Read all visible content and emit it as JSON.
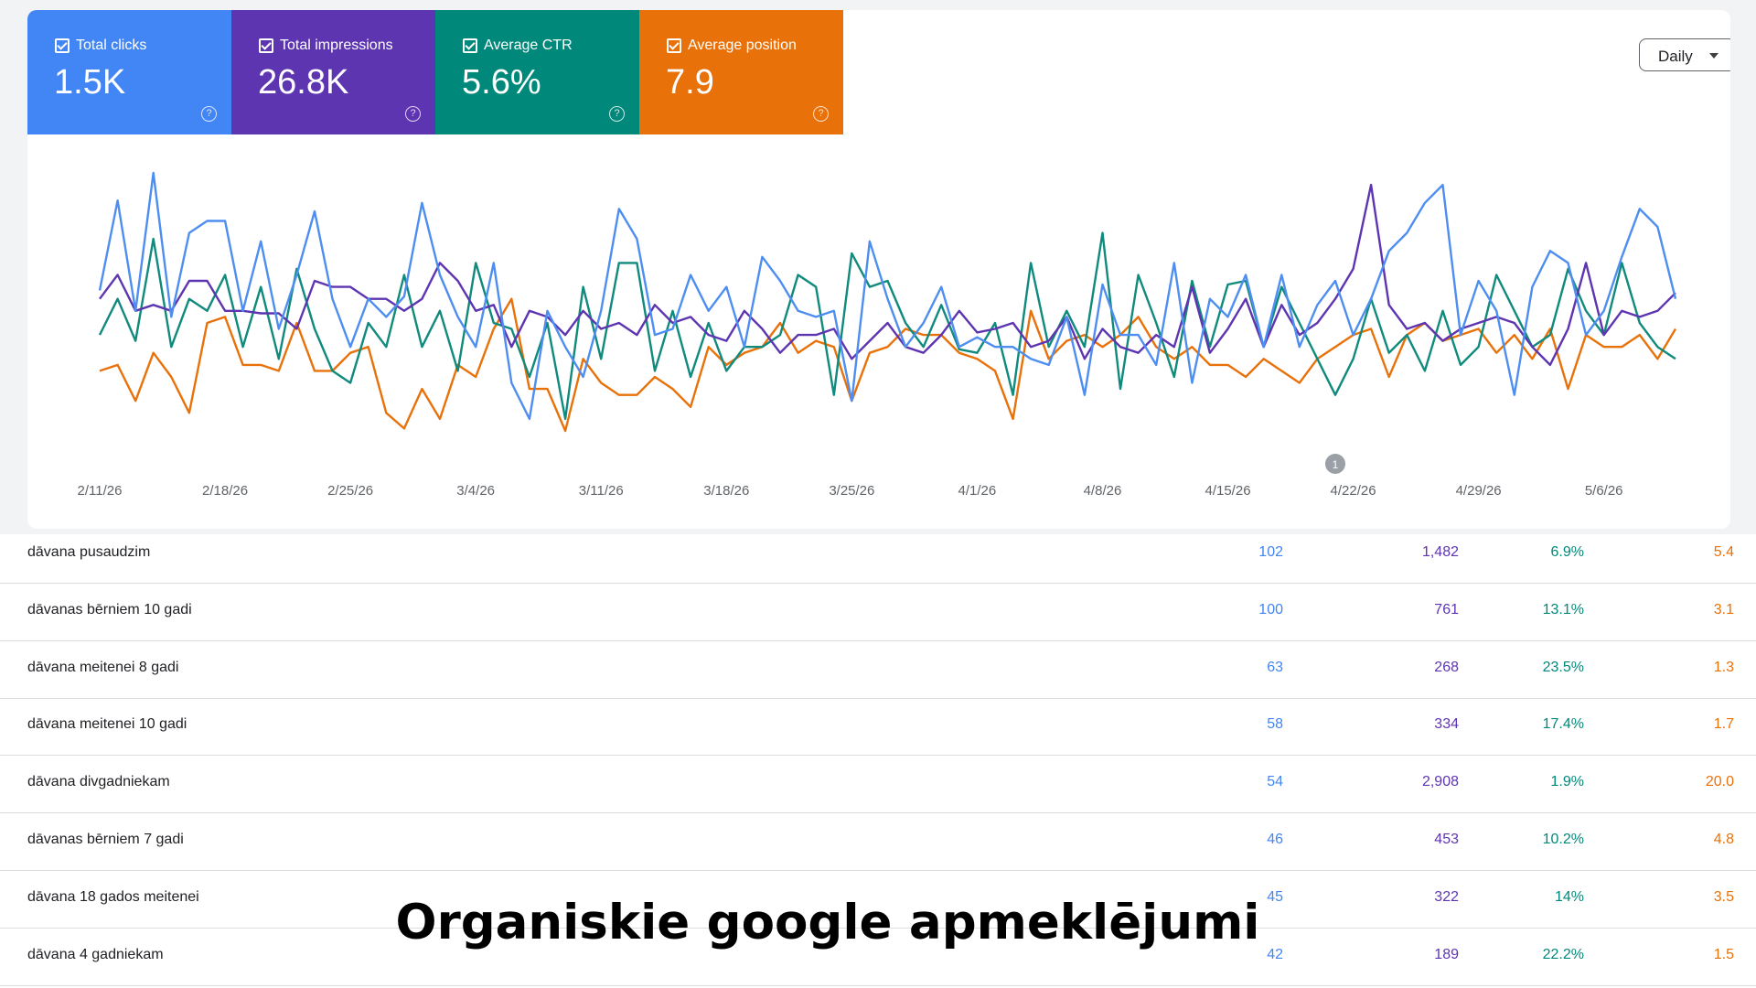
{
  "chart_data": {
    "type": "line",
    "categories": [
      "2/11/26",
      null,
      null,
      null,
      null,
      null,
      null,
      "2/18/26",
      null,
      null,
      null,
      null,
      null,
      null,
      "2/25/26",
      null,
      null,
      null,
      null,
      null,
      null,
      "3/4/26",
      null,
      null,
      null,
      null,
      null,
      null,
      "3/11/26",
      null,
      null,
      null,
      null,
      null,
      null,
      "3/18/26",
      null,
      null,
      null,
      null,
      null,
      null,
      "3/25/26",
      null,
      null,
      null,
      null,
      null,
      null,
      "4/1/26",
      null,
      null,
      null,
      null,
      null,
      null,
      "4/8/26",
      null,
      null,
      null,
      null,
      null,
      null,
      "4/15/26",
      null,
      null,
      null,
      null,
      null,
      null,
      "4/22/26",
      null,
      null,
      null,
      null,
      null,
      null,
      "4/29/26",
      null,
      null,
      null,
      null,
      null,
      null,
      "5/6/26",
      null,
      null,
      null,
      null
    ],
    "annotation": "1",
    "series": [
      {
        "name": "Total clicks",
        "total": "1.5K",
        "color": "#4285f4",
        "line_color": "#4e8ef0",
        "values": [
          147,
          222,
          130,
          245,
          125,
          195,
          205,
          205,
          130,
          188,
          115,
          160,
          213,
          140,
          100,
          140,
          125,
          142,
          220,
          160,
          125,
          100,
          170,
          70,
          40,
          130,
          100,
          75,
          130,
          215,
          190,
          110,
          115,
          160,
          130,
          150,
          100,
          175,
          155,
          130,
          125,
          130,
          55,
          188,
          140,
          100,
          120,
          150,
          100,
          108,
          100,
          100,
          90,
          85,
          125,
          60,
          152,
          110,
          110,
          85,
          170,
          70,
          140,
          125,
          160,
          100,
          160,
          100,
          135,
          155,
          110,
          140,
          180,
          195,
          220,
          235,
          110,
          155,
          130,
          60,
          150,
          180,
          170,
          110,
          130,
          175,
          215,
          200,
          140
        ]
      },
      {
        "name": "Total impressions",
        "total": "26.8K",
        "color": "#5e35b1",
        "line_color": "#5e35b1",
        "values": [
          140,
          160,
          130,
          135,
          130,
          155,
          155,
          130,
          130,
          128,
          128,
          115,
          155,
          150,
          150,
          140,
          140,
          130,
          140,
          170,
          155,
          130,
          135,
          100,
          130,
          125,
          110,
          130,
          115,
          120,
          110,
          135,
          120,
          125,
          110,
          105,
          130,
          115,
          95,
          110,
          110,
          115,
          90,
          105,
          120,
          100,
          95,
          110,
          130,
          112,
          115,
          120,
          100,
          105,
          125,
          90,
          115,
          100,
          95,
          110,
          100,
          150,
          95,
          115,
          140,
          100,
          135,
          110,
          120,
          140,
          165,
          235,
          135,
          115,
          120,
          105,
          115,
          120,
          125,
          120,
          100,
          85,
          115,
          170,
          110,
          130,
          125,
          130,
          145
        ]
      },
      {
        "name": "Average CTR",
        "total": "5.6%",
        "color": "#00897b",
        "line_color": "#108a7c",
        "values": [
          110,
          140,
          105,
          190,
          100,
          140,
          130,
          160,
          100,
          150,
          90,
          165,
          115,
          80,
          70,
          120,
          100,
          160,
          100,
          130,
          80,
          170,
          120,
          115,
          75,
          120,
          40,
          150,
          90,
          170,
          170,
          80,
          130,
          75,
          120,
          80,
          100,
          100,
          110,
          160,
          150,
          60,
          178,
          150,
          155,
          120,
          100,
          135,
          98,
          95,
          120,
          60,
          170,
          100,
          130,
          100,
          195,
          65,
          160,
          120,
          75,
          155,
          100,
          152,
          155,
          100,
          150,
          120,
          90,
          60,
          90,
          140,
          95,
          110,
          80,
          130,
          85,
          100,
          160,
          130,
          100,
          110,
          165,
          130,
          110,
          170,
          120,
          100,
          90
        ]
      },
      {
        "name": "Average position",
        "total": "7.9",
        "color": "#e8710a",
        "line_color": "#e8710a",
        "values": [
          80,
          85,
          55,
          95,
          75,
          45,
          120,
          125,
          85,
          85,
          80,
          120,
          80,
          80,
          95,
          100,
          45,
          32,
          65,
          40,
          85,
          75,
          115,
          140,
          65,
          65,
          30,
          90,
          70,
          60,
          60,
          75,
          65,
          50,
          100,
          85,
          95,
          100,
          120,
          95,
          105,
          100,
          55,
          95,
          100,
          115,
          110,
          110,
          95,
          90,
          80,
          40,
          130,
          90,
          105,
          110,
          100,
          110,
          125,
          100,
          90,
          100,
          85,
          85,
          75,
          90,
          80,
          70,
          90,
          100,
          110,
          115,
          75,
          110,
          120,
          105,
          110,
          115,
          95,
          110,
          90,
          115,
          65,
          110,
          100,
          100,
          110,
          90,
          115
        ]
      }
    ]
  },
  "controls": {
    "period": "Daily"
  },
  "table": {
    "rows": [
      [
        "dāvana pusaudzim",
        "102",
        "1,482",
        "6.9%",
        "5.4"
      ],
      [
        "dāvanas bērniem 10 gadi",
        "100",
        "761",
        "13.1%",
        "3.1"
      ],
      [
        "dāvana meitenei 8 gadi",
        "63",
        "268",
        "23.5%",
        "1.3"
      ],
      [
        "dāvana meitenei 10 gadi",
        "58",
        "334",
        "17.4%",
        "1.7"
      ],
      [
        "dāvana divgadniekam",
        "54",
        "2,908",
        "1.9%",
        "20.0"
      ],
      [
        "dāvanas bērniem 7 gadi",
        "46",
        "453",
        "10.2%",
        "4.8"
      ],
      [
        "dāvana 18 gados meitenei",
        "45",
        "322",
        "14%",
        "3.5"
      ],
      [
        "dāvana 4 gadniekam",
        "42",
        "189",
        "22.2%",
        "1.5"
      ]
    ]
  },
  "caption": "Organiskie google apmeklējumi"
}
